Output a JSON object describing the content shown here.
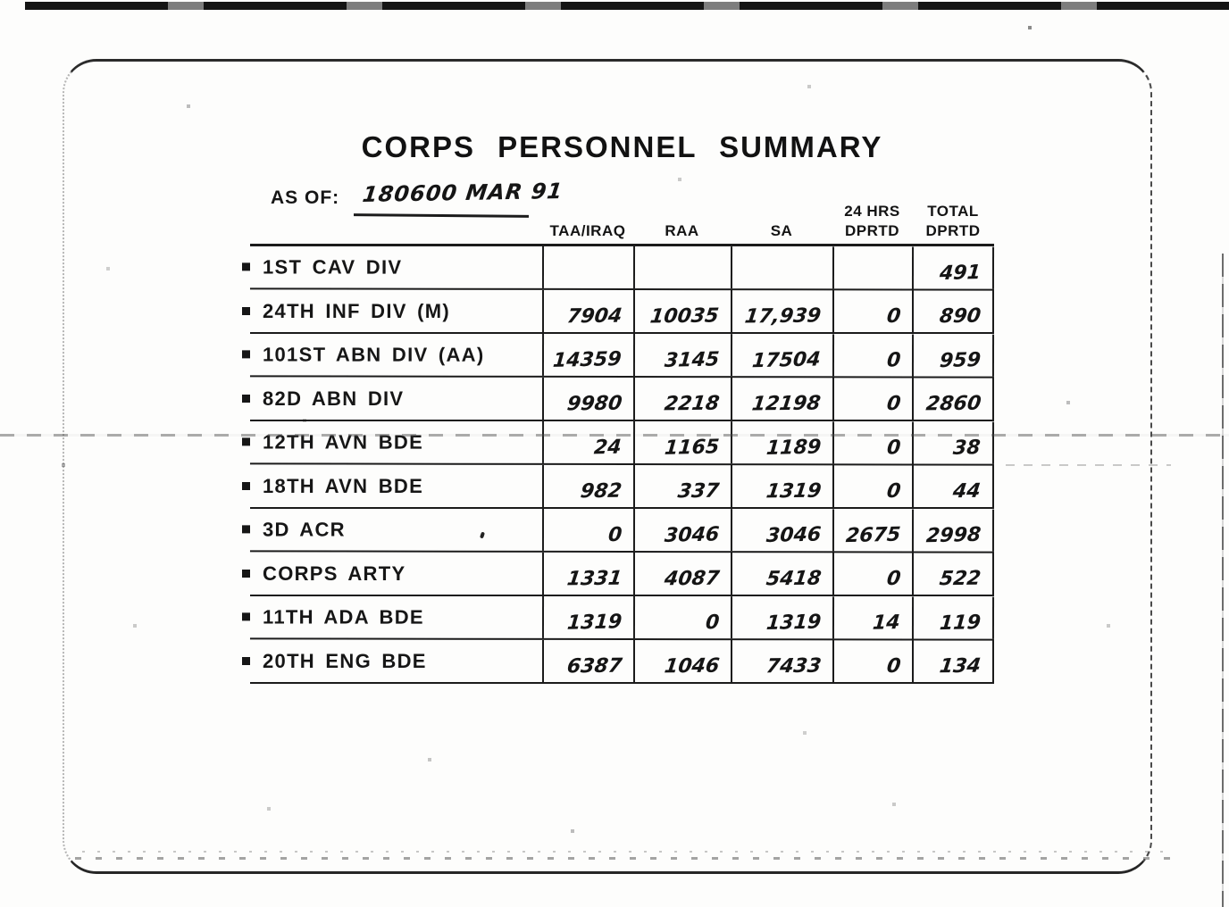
{
  "page": {
    "title": "CORPS PERSONNEL SUMMARY",
    "as_of_label": "AS OF:",
    "as_of_value": "180600 MAR 91"
  },
  "colors": {
    "ink": "#1b1b1b",
    "paper": "#fdfdfc"
  },
  "table": {
    "columns": [
      {
        "top": "",
        "label": "TAA/IRAQ"
      },
      {
        "top": "",
        "label": "RAA"
      },
      {
        "top": "",
        "label": "SA"
      },
      {
        "top": "24 HRS",
        "label": "DPRTD"
      },
      {
        "top": "TOTAL",
        "label": "DPRTD"
      }
    ],
    "rows": [
      {
        "unit": "1ST CAV DIV",
        "taa_iraq": "",
        "raa": "",
        "sa": "",
        "hrs24": "",
        "total": "491"
      },
      {
        "unit": "24TH INF DIV (M)",
        "taa_iraq": "7904",
        "raa": "10035",
        "sa": "17,939",
        "hrs24": "0",
        "total": "890"
      },
      {
        "unit": "101ST ABN DIV (AA)",
        "taa_iraq": "14359",
        "raa": "3145",
        "sa": "17504",
        "hrs24": "0",
        "total": "959"
      },
      {
        "unit": "82D ABN DIV",
        "taa_iraq": "9980",
        "raa": "2218",
        "sa": "12198",
        "hrs24": "0",
        "total": "2860"
      },
      {
        "unit": "12TH AVN BDE",
        "taa_iraq": "24",
        "raa": "1165",
        "sa": "1189",
        "hrs24": "0",
        "total": "38"
      },
      {
        "unit": "18TH AVN BDE",
        "taa_iraq": "982",
        "raa": "337",
        "sa": "1319",
        "hrs24": "0",
        "total": "44"
      },
      {
        "unit": "3D ACR",
        "taa_iraq": "0",
        "raa": "3046",
        "sa": "3046",
        "hrs24": "2675",
        "total": "2998"
      },
      {
        "unit": "CORPS ARTY",
        "taa_iraq": "1331",
        "raa": "4087",
        "sa": "5418",
        "hrs24": "0",
        "total": "522"
      },
      {
        "unit": "11TH ADA BDE",
        "taa_iraq": "1319",
        "raa": "0",
        "sa": "1319",
        "hrs24": "14",
        "total": "119"
      },
      {
        "unit": "20TH ENG BDE",
        "taa_iraq": "6387",
        "raa": "1046",
        "sa": "7433",
        "hrs24": "0",
        "total": "134"
      }
    ]
  }
}
